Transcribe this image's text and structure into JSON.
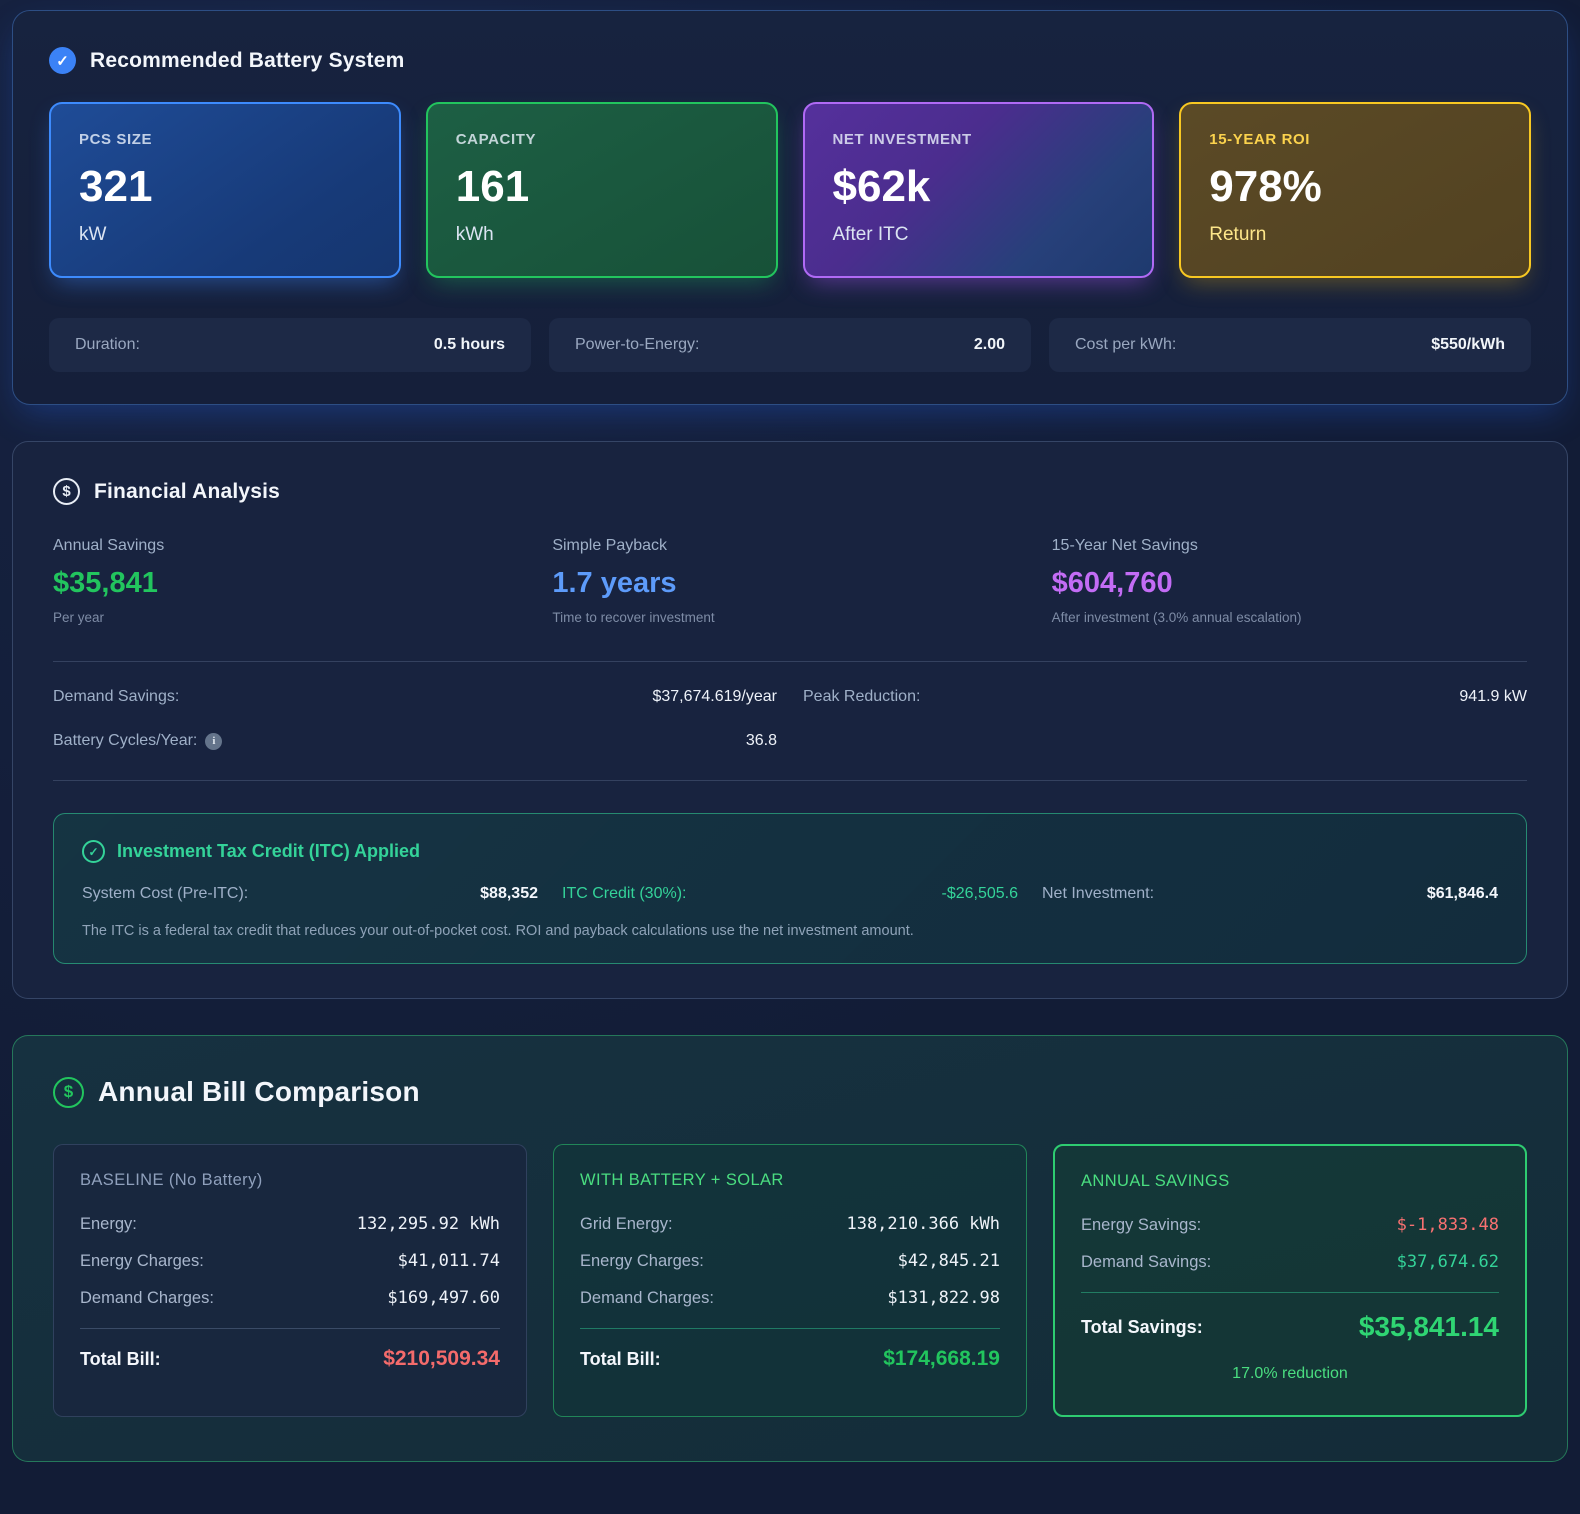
{
  "icons": {
    "check": "✓",
    "dollar": "$",
    "info": "i"
  },
  "accent_colors": {
    "blue": "#3d8bfd",
    "green": "#22c55e",
    "purple": "#b06af5",
    "gold": "#f8c822",
    "red": "#f87171",
    "teal_green": "#34d399",
    "payback_blue": "#5d9bfa",
    "savings_purple": "#c36cf5"
  },
  "recommended": {
    "title": "Recommended Battery System",
    "cards": [
      {
        "label": "PCS SIZE",
        "value": "321",
        "unit": "kW"
      },
      {
        "label": "CAPACITY",
        "value": "161",
        "unit": "kWh"
      },
      {
        "label": "NET INVESTMENT",
        "value": "$62k",
        "unit": "After ITC"
      },
      {
        "label": "15-YEAR ROI",
        "value": "978%",
        "unit": "Return"
      }
    ],
    "stats": [
      {
        "label": "Duration:",
        "value": "0.5 hours"
      },
      {
        "label": "Power-to-Energy:",
        "value": "2.00"
      },
      {
        "label": "Cost per kWh:",
        "value": "$550/kWh"
      }
    ]
  },
  "financial": {
    "title": "Financial Analysis",
    "metrics": [
      {
        "label": "Annual Savings",
        "value": "$35,841",
        "sub": "Per year"
      },
      {
        "label": "Simple Payback",
        "value": "1.7 years",
        "sub": "Time to recover investment"
      },
      {
        "label": "15-Year Net Savings",
        "value": "$604,760",
        "sub": "After investment (3.0% annual escalation)"
      }
    ],
    "details": [
      {
        "label": "Demand Savings:",
        "value": "$37,674.619/year"
      },
      {
        "label": "Peak Reduction:",
        "value": "941.9 kW"
      },
      {
        "label": "Battery Cycles/Year:",
        "value": "36.8"
      }
    ],
    "itc": {
      "title": "Investment Tax Credit (ITC) Applied",
      "items": [
        {
          "label": "System Cost (Pre-ITC):",
          "value": "$88,352"
        },
        {
          "label": "ITC Credit (30%):",
          "value": "-$26,505.6"
        },
        {
          "label": "Net Investment:",
          "value": "$61,846.4"
        }
      ],
      "note": "The ITC is a federal tax credit that reduces your out-of-pocket cost. ROI and payback calculations use the net investment amount."
    }
  },
  "bills": {
    "title": "Annual Bill Comparison",
    "baseline": {
      "title": "BASELINE (No Battery)",
      "rows": [
        {
          "label": "Energy:",
          "value": "132,295.92 kWh"
        },
        {
          "label": "Energy Charges:",
          "value": "$41,011.74"
        },
        {
          "label": "Demand Charges:",
          "value": "$169,497.60"
        }
      ],
      "total_label": "Total Bill:",
      "total_value": "$210,509.34"
    },
    "with_battery": {
      "title": "WITH BATTERY + SOLAR",
      "rows": [
        {
          "label": "Grid Energy:",
          "value": "138,210.366 kWh"
        },
        {
          "label": "Energy Charges:",
          "value": "$42,845.21"
        },
        {
          "label": "Demand Charges:",
          "value": "$131,822.98"
        }
      ],
      "total_label": "Total Bill:",
      "total_value": "$174,668.19"
    },
    "savings": {
      "title": "ANNUAL SAVINGS",
      "rows": [
        {
          "label": "Energy Savings:",
          "value": "$-1,833.48"
        },
        {
          "label": "Demand Savings:",
          "value": "$37,674.62"
        }
      ],
      "total_label": "Total Savings:",
      "total_value": "$35,841.14",
      "reduction": "17.0% reduction"
    }
  }
}
